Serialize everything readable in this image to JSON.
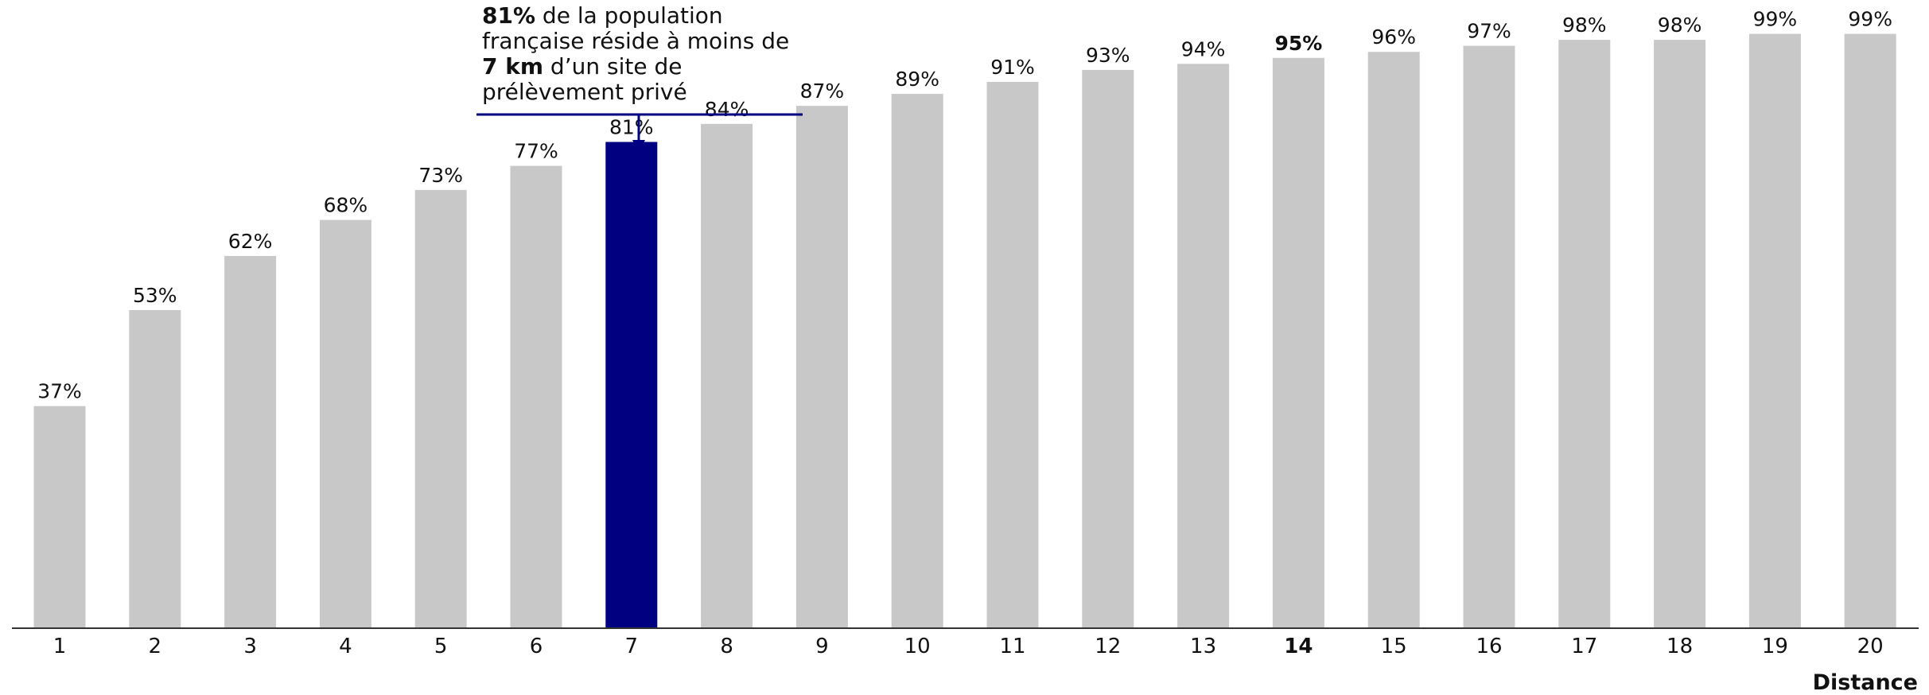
{
  "chart_data": {
    "type": "bar",
    "categories": [
      "1",
      "2",
      "3",
      "4",
      "5",
      "6",
      "7",
      "8",
      "9",
      "10",
      "11",
      "12",
      "13",
      "14",
      "15",
      "16",
      "17",
      "18",
      "19",
      "20"
    ],
    "values": [
      37,
      53,
      62,
      68,
      73,
      77,
      81,
      84,
      87,
      89,
      91,
      93,
      94,
      95,
      96,
      97,
      98,
      98,
      99,
      99
    ],
    "value_labels": [
      "37%",
      "53%",
      "62%",
      "68%",
      "73%",
      "77%",
      "81%",
      "84%",
      "87%",
      "89%",
      "91%",
      "93%",
      "94%",
      "95%",
      "96%",
      "97%",
      "98%",
      "98%",
      "99%",
      "99%"
    ],
    "highlight_index": 6,
    "bold_index": 13,
    "xlabel": "Distance",
    "ylabel": "",
    "ylim": [
      0,
      100
    ],
    "grid": false,
    "legend": "none",
    "annotation": {
      "line1_bold": "81%",
      "line1_rest": " de la population",
      "line2": "française réside à moins de",
      "line3_bold": "7 km",
      "line3_rest": " d’un site de",
      "line4": "prélèvement privé"
    },
    "colors": {
      "default_bar": "#c8c8c8",
      "highlight_bar": "#000080",
      "annotation_line": "#000080",
      "axis": "#333333"
    }
  }
}
